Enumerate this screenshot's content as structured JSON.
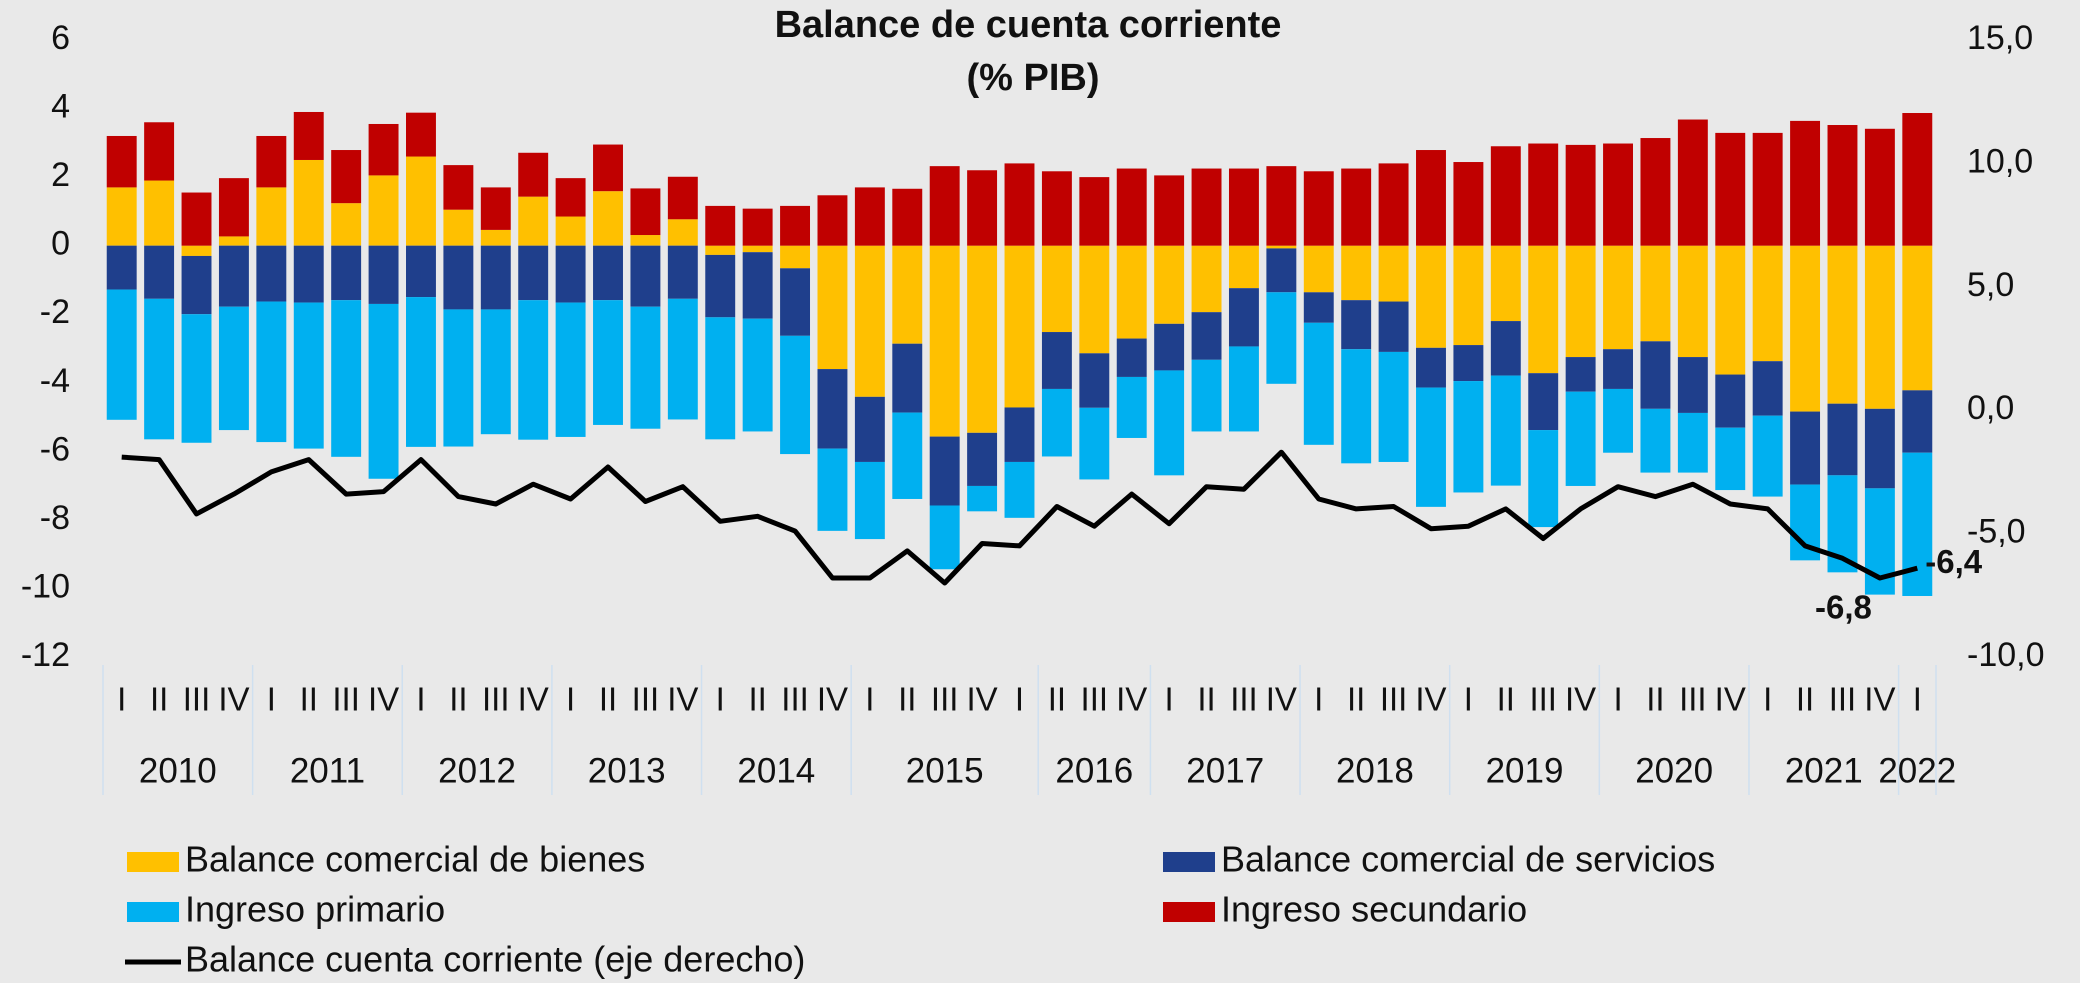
{
  "chart_data": {
    "type": "stacked_bar_line",
    "title": "Balance de cuenta corriente",
    "subtitle": "(% PIB)",
    "categories": [
      "I",
      "II",
      "III",
      "IV",
      "I",
      "II",
      "III",
      "IV",
      "I",
      "II",
      "III",
      "IV",
      "I",
      "II",
      "III",
      "IV",
      "I",
      "II",
      "III",
      "IV",
      "I",
      "II",
      "III",
      "IV",
      "I",
      "II",
      "III",
      "IV",
      "I",
      "II",
      "III",
      "IV",
      "I",
      "II",
      "III",
      "IV",
      "I",
      "II",
      "III",
      "IV",
      "I",
      "II",
      "III",
      "IV",
      "I",
      "II",
      "III",
      "IV",
      "I"
    ],
    "years": [
      "2010",
      null,
      null,
      null,
      "2011",
      null,
      null,
      null,
      "2012",
      null,
      null,
      null,
      "2013",
      null,
      null,
      null,
      "2014",
      null,
      null,
      null,
      "2015",
      null,
      null,
      null,
      null,
      "2016",
      null,
      null,
      "2017",
      null,
      null,
      null,
      "2018",
      null,
      null,
      null,
      "2019",
      null,
      null,
      null,
      "2020",
      null,
      null,
      null,
      "2021",
      null,
      null,
      null,
      "2022"
    ],
    "ylim": [
      -12,
      6
    ],
    "yticks": [
      6,
      4,
      2,
      0,
      -2,
      -4,
      -6,
      -8,
      -10,
      -12
    ],
    "y2lim": [
      -10,
      15
    ],
    "y2ticks": [
      {
        "value": 15,
        "label": "15,0"
      },
      {
        "value": 10,
        "label": "10,0"
      },
      {
        "value": 5,
        "label": "5,0"
      },
      {
        "value": 0,
        "label": "0,0"
      },
      {
        "value": -5,
        "label": "-5,0"
      },
      {
        "value": -10,
        "label": "-10,0"
      }
    ],
    "series": [
      {
        "name": "Balance comercial de bienes",
        "color": "#FFC000",
        "values": [
          1.7,
          1.9,
          -0.3,
          0.27,
          1.7,
          2.5,
          1.24,
          2.05,
          2.6,
          1.05,
          0.46,
          1.43,
          0.85,
          1.59,
          0.31,
          0.77,
          -0.27,
          -0.19,
          -0.66,
          -3.6,
          -4.41,
          -2.86,
          -5.57,
          -5.46,
          -4.72,
          -2.52,
          -3.14,
          -2.71,
          -2.28,
          -1.94,
          -1.24,
          -0.08,
          -1.36,
          -1.59,
          -1.63,
          -2.98,
          -2.9,
          -2.2,
          -3.72,
          -3.25,
          -3.02,
          -2.79,
          -3.25,
          -3.76,
          -3.37,
          -4.84,
          -4.61,
          -4.76,
          -4.22
        ]
      },
      {
        "name": "Balance comercial de servicios",
        "color": "#1F3F8C",
        "values": [
          -1.28,
          -1.55,
          -1.7,
          -1.78,
          -1.63,
          -1.66,
          -1.59,
          -1.7,
          -1.5,
          -1.86,
          -1.86,
          -1.59,
          -1.66,
          -1.59,
          -1.78,
          -1.55,
          -1.82,
          -1.94,
          -1.97,
          -2.32,
          -1.9,
          -2.01,
          -2.01,
          -1.55,
          -1.59,
          -1.66,
          -1.59,
          -1.12,
          -1.36,
          -1.39,
          -1.7,
          -1.28,
          -0.89,
          -1.43,
          -1.47,
          -1.16,
          -1.05,
          -1.59,
          -1.66,
          -1.01,
          -1.16,
          -1.97,
          -1.63,
          -1.55,
          -1.59,
          -2.13,
          -2.09,
          -2.32,
          -1.82
        ]
      },
      {
        "name": "Ingreso primario",
        "color": "#00B0F0",
        "values": [
          -3.8,
          -4.1,
          -3.75,
          -3.6,
          -4.1,
          -4.26,
          -4.57,
          -5.1,
          -4.37,
          -4.0,
          -3.64,
          -4.07,
          -3.92,
          -3.64,
          -3.56,
          -3.52,
          -3.56,
          -3.29,
          -3.45,
          -2.4,
          -2.25,
          -2.52,
          -1.86,
          -0.74,
          -1.63,
          -1.97,
          -2.09,
          -1.78,
          -3.06,
          -2.09,
          -2.48,
          -2.67,
          -3.56,
          -3.33,
          -3.21,
          -3.48,
          -3.25,
          -3.21,
          -2.83,
          -2.75,
          -1.86,
          -1.86,
          -1.74,
          -1.82,
          -2.36,
          -2.21,
          -2.83,
          -3.1,
          -4.18
        ]
      },
      {
        "name": "Ingreso secundario",
        "color": "#C00000",
        "values": [
          1.5,
          1.7,
          1.55,
          1.7,
          1.5,
          1.4,
          1.55,
          1.5,
          1.28,
          1.3,
          1.24,
          1.28,
          1.12,
          1.36,
          1.36,
          1.24,
          1.16,
          1.08,
          1.16,
          1.47,
          1.7,
          1.66,
          2.32,
          2.2,
          2.4,
          2.17,
          2.0,
          2.25,
          2.05,
          2.25,
          2.25,
          2.32,
          2.17,
          2.25,
          2.4,
          2.79,
          2.44,
          2.9,
          2.98,
          2.94,
          2.98,
          3.14,
          3.68,
          3.29,
          3.29,
          3.64,
          3.52,
          3.41,
          3.87
        ]
      },
      {
        "name": "Balance cuenta corriente (eje derecho)",
        "color": "#000000",
        "axis": "y2",
        "type": "line",
        "values": [
          -1.9,
          -2.0,
          -4.2,
          -3.4,
          -2.5,
          -2.0,
          -3.4,
          -3.3,
          -2.0,
          -3.5,
          -3.8,
          -3.0,
          -3.6,
          -2.3,
          -3.7,
          -3.1,
          -4.5,
          -4.3,
          -4.9,
          -6.8,
          -6.8,
          -5.7,
          -7.0,
          -5.4,
          -5.5,
          -3.9,
          -4.7,
          -3.4,
          -4.6,
          -3.1,
          -3.2,
          -1.7,
          -3.6,
          -4.0,
          -3.9,
          -4.8,
          -4.7,
          -4.0,
          -5.2,
          -4.0,
          -3.1,
          -3.5,
          -3.0,
          -3.8,
          -4.0,
          -5.5,
          -6.0,
          -6.8,
          -6.4
        ],
        "value_labels": [
          null,
          null,
          null,
          null,
          null,
          null,
          null,
          null,
          null,
          null,
          null,
          null,
          null,
          null,
          null,
          null,
          null,
          null,
          null,
          null,
          null,
          null,
          null,
          null,
          null,
          null,
          null,
          null,
          null,
          null,
          null,
          null,
          null,
          null,
          null,
          null,
          null,
          null,
          null,
          null,
          null,
          null,
          null,
          null,
          null,
          null,
          null,
          "-6,8",
          "-6,4"
        ]
      }
    ]
  }
}
